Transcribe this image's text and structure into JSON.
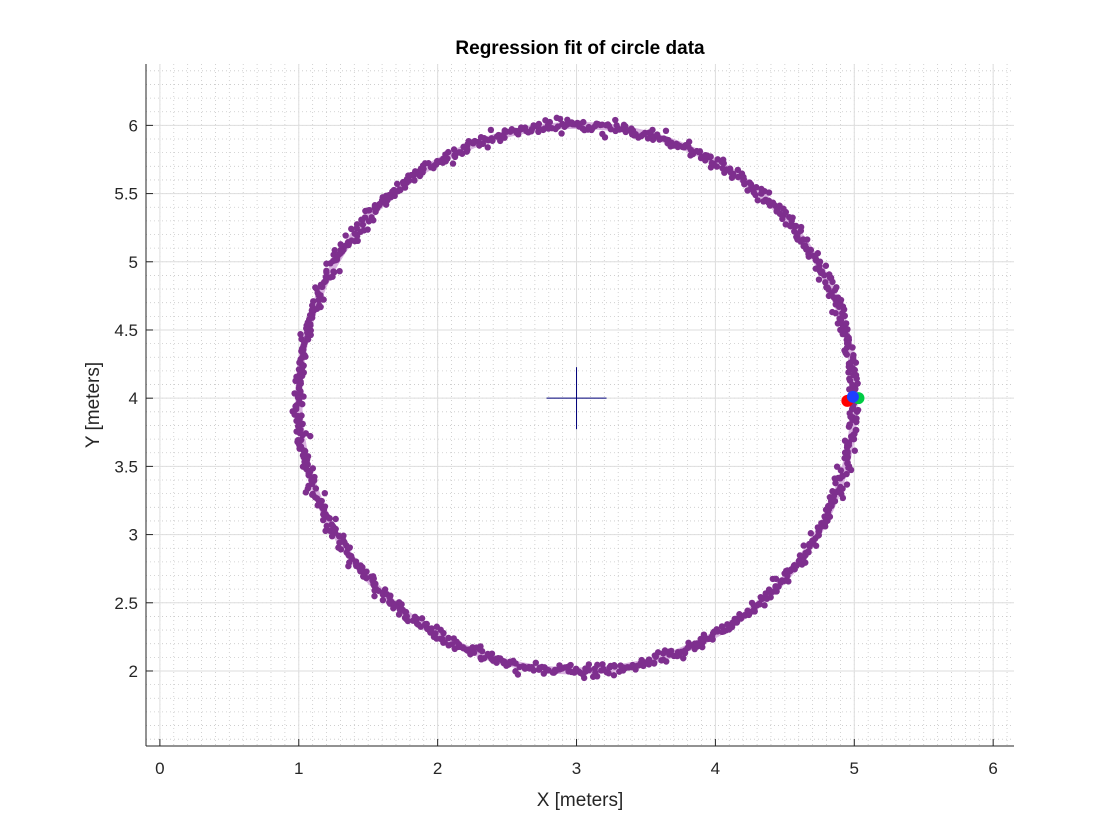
{
  "chart_data": {
    "type": "scatter",
    "title": "Regression fit of circle data",
    "xlabel": "X [meters]",
    "ylabel": "Y [meters]",
    "xlim": [
      -0.1,
      6.15
    ],
    "ylim": [
      1.45,
      6.45
    ],
    "xticks": [
      0,
      1,
      2,
      3,
      4,
      5,
      6
    ],
    "xtick_labels": [
      "0",
      "1",
      "2",
      "3",
      "4",
      "5",
      "6"
    ],
    "yticks": [
      2,
      2.5,
      3,
      3.5,
      4,
      4.5,
      5,
      5.5,
      6
    ],
    "ytick_labels": [
      "2",
      "2.5",
      "3",
      "3.5",
      "4",
      "4.5",
      "5",
      "5.5",
      "6"
    ],
    "grid": true,
    "minor_grid": true,
    "fit_circle": {
      "center": [
        3,
        4
      ],
      "radius": 2,
      "color": "#d9b3e0"
    },
    "center_marker": {
      "x": 3,
      "y": 4,
      "marker": "+",
      "color": "#00007a"
    },
    "data_points": {
      "color": "#7e2f8e",
      "center": [
        3,
        4
      ],
      "radius": 2,
      "noise": 0.022,
      "count": 1000
    },
    "markers": [
      {
        "x": 4.95,
        "y": 3.98,
        "color": "#ff0000"
      },
      {
        "x": 5.03,
        "y": 4.0,
        "color": "#00cc44"
      },
      {
        "x": 4.99,
        "y": 4.01,
        "color": "#1f3fff"
      }
    ]
  }
}
